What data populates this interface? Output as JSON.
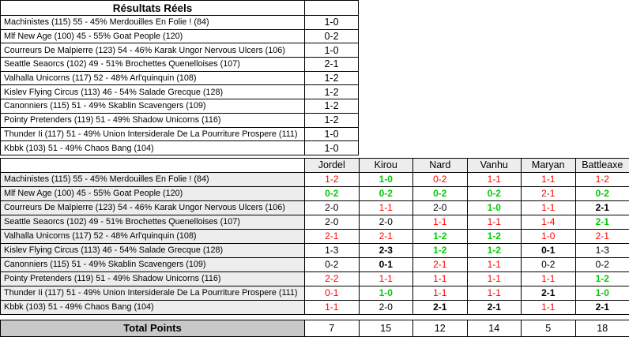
{
  "results_table": {
    "title": "Résultats Réels",
    "rows": [
      {
        "match": "Machinistes (115) 55 - 45% Merdouilles En Folie ! (84)",
        "score": "1-0"
      },
      {
        "match": "Mlf New Age (100) 45 - 55% Goat People (120)",
        "score": "0-2"
      },
      {
        "match": "Courreurs De Malpierre (123) 54 - 46% Karak Ungor Nervous Ulcers (106)",
        "score": "1-0"
      },
      {
        "match": "Seattle Seaorcs (102) 49 - 51% Brochettes Quenelloises (107)",
        "score": "2-1"
      },
      {
        "match": "Valhalla Unicorns (117) 52 - 48% Arl'quinquin (108)",
        "score": "1-2"
      },
      {
        "match": "Kislev Flying Circus (113) 46 - 54% Salade Grecque (128)",
        "score": "1-2"
      },
      {
        "match": "Canonniers (115) 51 - 49% Skablin Scavengers (109)",
        "score": "1-2"
      },
      {
        "match": "Pointy Pretenders (119) 51 - 49% Shadow Unicorns (116)",
        "score": "1-2"
      },
      {
        "match": "Thunder Ii (117) 51 - 49% Union Intersiderale De La Pourriture Prospere (111)",
        "score": "1-0"
      },
      {
        "match": "Kbbk (103) 51 - 49% Chaos Bang (104)",
        "score": "1-0"
      }
    ]
  },
  "predictions_table": {
    "players": [
      "Jordel",
      "Kirou",
      "Nard",
      "Vanhu",
      "Maryan",
      "Battleaxe"
    ],
    "rows": [
      {
        "match": "Machinistes (115) 55 - 45% Merdouilles En Folie ! (84)",
        "cells": [
          {
            "v": "1-2",
            "c": "red",
            "b": false
          },
          {
            "v": "1-0",
            "c": "green",
            "b": true
          },
          {
            "v": "0-2",
            "c": "red",
            "b": false
          },
          {
            "v": "1-1",
            "c": "red",
            "b": false
          },
          {
            "v": "1-1",
            "c": "red",
            "b": false
          },
          {
            "v": "1-2",
            "c": "red",
            "b": false
          }
        ]
      },
      {
        "match": "Mlf New Age (100) 45 - 55% Goat People (120)",
        "cells": [
          {
            "v": "0-2",
            "c": "green",
            "b": true
          },
          {
            "v": "0-2",
            "c": "green",
            "b": true
          },
          {
            "v": "0-2",
            "c": "green",
            "b": true
          },
          {
            "v": "0-2",
            "c": "green",
            "b": true
          },
          {
            "v": "2-1",
            "c": "red",
            "b": false
          },
          {
            "v": "0-2",
            "c": "green",
            "b": true
          }
        ]
      },
      {
        "match": "Courreurs De Malpierre (123) 54 - 46% Karak Ungor Nervous Ulcers (106)",
        "cells": [
          {
            "v": "2-0",
            "c": "black",
            "b": false
          },
          {
            "v": "1-1",
            "c": "red",
            "b": false
          },
          {
            "v": "2-0",
            "c": "black",
            "b": false
          },
          {
            "v": "1-0",
            "c": "green",
            "b": true
          },
          {
            "v": "1-1",
            "c": "red",
            "b": false
          },
          {
            "v": "2-1",
            "c": "black",
            "b": true
          }
        ]
      },
      {
        "match": "Seattle Seaorcs (102) 49 - 51% Brochettes Quenelloises (107)",
        "cells": [
          {
            "v": "2-0",
            "c": "black",
            "b": false
          },
          {
            "v": "2-0",
            "c": "black",
            "b": false
          },
          {
            "v": "1-1",
            "c": "red",
            "b": false
          },
          {
            "v": "1-1",
            "c": "red",
            "b": false
          },
          {
            "v": "1-4",
            "c": "red",
            "b": false
          },
          {
            "v": "2-1",
            "c": "green",
            "b": true
          }
        ]
      },
      {
        "match": "Valhalla Unicorns (117) 52 - 48% Arl'quinquin (108)",
        "cells": [
          {
            "v": "2-1",
            "c": "red",
            "b": false
          },
          {
            "v": "2-1",
            "c": "red",
            "b": false
          },
          {
            "v": "1-2",
            "c": "green",
            "b": true
          },
          {
            "v": "1-2",
            "c": "green",
            "b": true
          },
          {
            "v": "1-0",
            "c": "red",
            "b": false
          },
          {
            "v": "2-1",
            "c": "red",
            "b": false
          }
        ]
      },
      {
        "match": "Kislev Flying Circus (113) 46 - 54% Salade Grecque (128)",
        "cells": [
          {
            "v": "1-3",
            "c": "black",
            "b": false
          },
          {
            "v": "2-3",
            "c": "black",
            "b": true
          },
          {
            "v": "1-2",
            "c": "green",
            "b": true
          },
          {
            "v": "1-2",
            "c": "green",
            "b": true
          },
          {
            "v": "0-1",
            "c": "black",
            "b": true
          },
          {
            "v": "1-3",
            "c": "black",
            "b": false
          }
        ]
      },
      {
        "match": "Canonniers (115) 51 - 49% Skablin Scavengers (109)",
        "cells": [
          {
            "v": "0-2",
            "c": "black",
            "b": false
          },
          {
            "v": "0-1",
            "c": "black",
            "b": true
          },
          {
            "v": "2-1",
            "c": "red",
            "b": false
          },
          {
            "v": "1-1",
            "c": "red",
            "b": false
          },
          {
            "v": "0-2",
            "c": "black",
            "b": false
          },
          {
            "v": "0-2",
            "c": "black",
            "b": false
          }
        ]
      },
      {
        "match": "Pointy Pretenders (119) 51 - 49% Shadow Unicorns (116)",
        "cells": [
          {
            "v": "2-2",
            "c": "red",
            "b": false
          },
          {
            "v": "1-1",
            "c": "red",
            "b": false
          },
          {
            "v": "1-1",
            "c": "red",
            "b": false
          },
          {
            "v": "1-1",
            "c": "red",
            "b": false
          },
          {
            "v": "1-1",
            "c": "red",
            "b": false
          },
          {
            "v": "1-2",
            "c": "green",
            "b": true
          }
        ]
      },
      {
        "match": "Thunder Ii (117) 51 - 49% Union Intersiderale De La Pourriture Prospere (111)",
        "cells": [
          {
            "v": "0-1",
            "c": "red",
            "b": false
          },
          {
            "v": "1-0",
            "c": "green",
            "b": true
          },
          {
            "v": "1-1",
            "c": "red",
            "b": false
          },
          {
            "v": "1-1",
            "c": "red",
            "b": false
          },
          {
            "v": "2-1",
            "c": "black",
            "b": true
          },
          {
            "v": "1-0",
            "c": "green",
            "b": true
          }
        ]
      },
      {
        "match": "Kbbk (103) 51 - 49% Chaos Bang (104)",
        "cells": [
          {
            "v": "1-1",
            "c": "red",
            "b": false
          },
          {
            "v": "2-0",
            "c": "black",
            "b": false
          },
          {
            "v": "2-1",
            "c": "black",
            "b": true
          },
          {
            "v": "2-1",
            "c": "black",
            "b": true
          },
          {
            "v": "1-1",
            "c": "red",
            "b": false
          },
          {
            "v": "2-1",
            "c": "black",
            "b": true
          }
        ]
      }
    ]
  },
  "totals_row": {
    "label": "Total Points",
    "values": [
      "7",
      "15",
      "12",
      "14",
      "5",
      "18"
    ]
  },
  "palette": {
    "red": "#FF0000",
    "green": "#00CC00",
    "black": "#000000",
    "label_bg": "#EDEDED",
    "header_bg": "#EDEDED",
    "total_bg": "#C8C8C8"
  }
}
